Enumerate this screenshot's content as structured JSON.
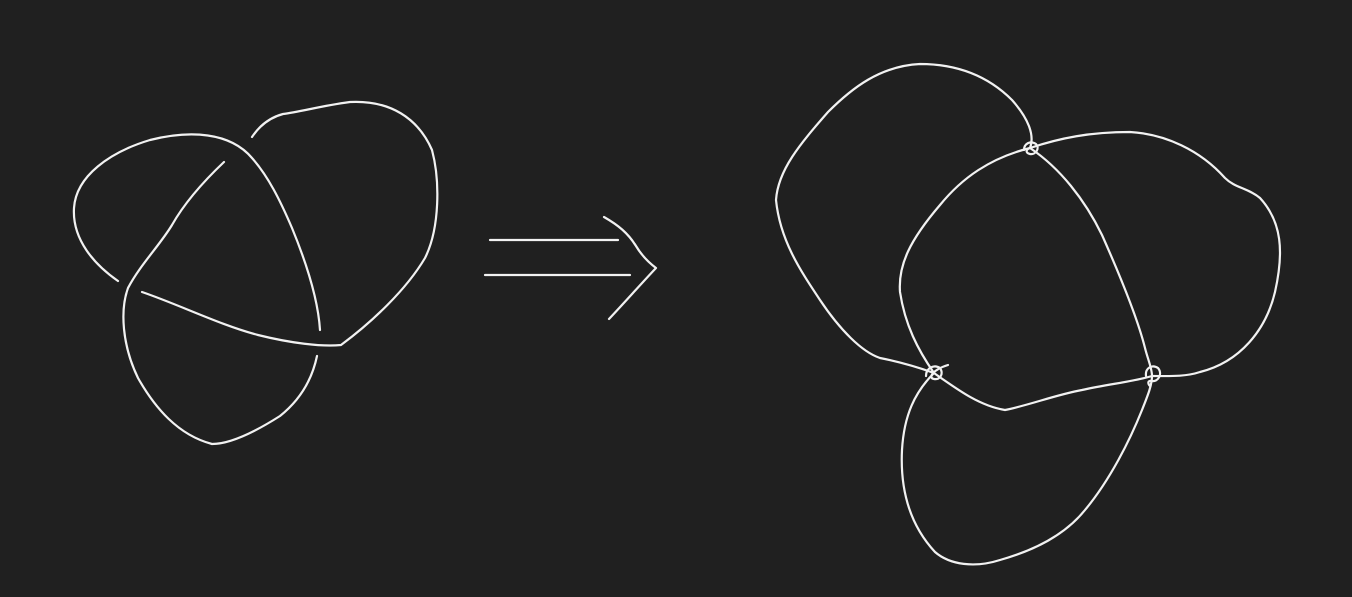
{
  "canvas": {
    "background": "#202020",
    "stroke_color": "#f2f2f2"
  },
  "diagram": {
    "left_figure": "trefoil-knot-diagram",
    "connector": "implies-double-arrow-icon",
    "right_figure": "knot-diagram-with-crossings-replaced-by-small-loops",
    "left_crossings": 3,
    "right_crossing_loops": 3
  }
}
